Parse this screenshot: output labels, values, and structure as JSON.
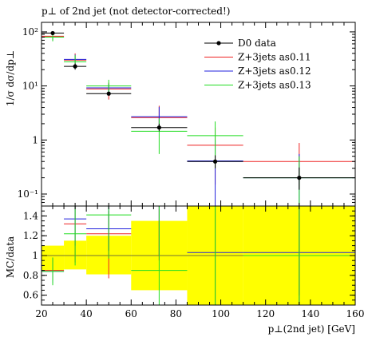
{
  "chart_data": {
    "type": "line",
    "title": "p⊥ of 2nd jet (not detector-corrected!)",
    "xlabel": "p⊥(2nd jet) [GeV]",
    "xlim": [
      20,
      160
    ],
    "x_ticks": [
      "20",
      "40",
      "60",
      "80",
      "100",
      "120",
      "140",
      "160"
    ],
    "x_tick_values": [
      20,
      40,
      60,
      80,
      100,
      120,
      140,
      160
    ],
    "main_panel": {
      "ylabel": "1/σ dσ/dp⊥",
      "yscale": "log",
      "ylim": [
        0.06,
        150
      ],
      "y_major_ticks": [
        {
          "value": 0.1,
          "label": "10⁻¹"
        },
        {
          "value": 1,
          "label": "1"
        },
        {
          "value": 10,
          "label": "10¹"
        },
        {
          "value": 100,
          "label": "10²"
        }
      ],
      "data": {
        "name": "D0 data",
        "color": "#000000",
        "points": [
          {
            "xlo": 20,
            "xhi": 30,
            "x": 25,
            "y": 95,
            "ylo": 92,
            "yhi": 98
          },
          {
            "xlo": 30,
            "xhi": 40,
            "x": 35,
            "y": 23,
            "ylo": 20,
            "yhi": 26
          },
          {
            "xlo": 40,
            "xhi": 60,
            "x": 50,
            "y": 7.2,
            "ylo": 6.7,
            "yhi": 7.8
          },
          {
            "xlo": 60,
            "xhi": 85,
            "x": 72.5,
            "y": 1.7,
            "ylo": 1.45,
            "yhi": 2.0
          },
          {
            "xlo": 85,
            "xhi": 110,
            "x": 97.5,
            "y": 0.4,
            "ylo": 0.3,
            "yhi": 0.52
          },
          {
            "xlo": 110,
            "xhi": 160,
            "x": 135,
            "y": 0.2,
            "ylo": 0.12,
            "yhi": 0.31
          }
        ]
      },
      "series": [
        {
          "name": "Z+3jets as0.11",
          "color": "#ee2222",
          "points": [
            {
              "xlo": 20,
              "xhi": 30,
              "x": 25,
              "y": 83,
              "ylo": 70,
              "yhi": 98
            },
            {
              "xlo": 30,
              "xhi": 40,
              "x": 35,
              "y": 30,
              "ylo": 21,
              "yhi": 40
            },
            {
              "xlo": 40,
              "xhi": 60,
              "x": 50,
              "y": 8.8,
              "ylo": 5.6,
              "yhi": 11.5
            },
            {
              "xlo": 60,
              "xhi": 85,
              "x": 72.5,
              "y": 2.6,
              "ylo": 1.6,
              "yhi": 4.3
            },
            {
              "xlo": 85,
              "xhi": 110,
              "x": 97.5,
              "y": 0.8,
              "ylo": 0.15,
              "yhi": 1.7
            },
            {
              "xlo": 110,
              "xhi": 160,
              "x": 135,
              "y": 0.4,
              "ylo": 0.12,
              "yhi": 0.88
            }
          ]
        },
        {
          "name": "Z+3jets as0.12",
          "color": "#2222dd",
          "points": [
            {
              "xlo": 20,
              "xhi": 30,
              "x": 25,
              "y": 80,
              "ylo": 68,
              "yhi": 95
            },
            {
              "xlo": 30,
              "xhi": 40,
              "x": 35,
              "y": 31,
              "ylo": 25,
              "yhi": 38
            },
            {
              "xlo": 40,
              "xhi": 60,
              "x": 50,
              "y": 9.2,
              "ylo": 7.5,
              "yhi": 11
            },
            {
              "xlo": 60,
              "xhi": 85,
              "x": 72.5,
              "y": 2.7,
              "ylo": 1.7,
              "yhi": 4.1
            },
            {
              "xlo": 85,
              "xhi": 110,
              "x": 97.5,
              "y": 0.41,
              "ylo": 0.05,
              "yhi": 1.0
            },
            {
              "xlo": 110,
              "xhi": 160,
              "x": 135,
              "y": 0.2,
              "ylo": 0.05,
              "yhi": 0.55
            }
          ]
        },
        {
          "name": "Z+3jets as0.13",
          "color": "#22dd22",
          "points": [
            {
              "xlo": 20,
              "xhi": 30,
              "x": 25,
              "y": 80,
              "ylo": 67,
              "yhi": 94
            },
            {
              "xlo": 30,
              "xhi": 40,
              "x": 35,
              "y": 28,
              "ylo": 21,
              "yhi": 37
            },
            {
              "xlo": 40,
              "xhi": 60,
              "x": 50,
              "y": 10,
              "ylo": 7,
              "yhi": 13
            },
            {
              "xlo": 60,
              "xhi": 85,
              "x": 72.5,
              "y": 1.45,
              "ylo": 0.55,
              "yhi": 2.5
            },
            {
              "xlo": 85,
              "xhi": 110,
              "x": 97.5,
              "y": 1.2,
              "ylo": 0.3,
              "yhi": 2.2
            },
            {
              "xlo": 110,
              "xhi": 160,
              "x": 135,
              "y": 0.2,
              "ylo": 0.05,
              "yhi": 0.5
            }
          ]
        }
      ]
    },
    "ratio_panel": {
      "ylabel": "MC/data",
      "ylim": [
        0.5,
        1.5
      ],
      "y_ticks": [
        "0.6",
        "0.8",
        "1",
        "1.2",
        "1.4"
      ],
      "y_tick_values": [
        0.6,
        0.8,
        1.0,
        1.2,
        1.4
      ],
      "band_color": "#ffff00",
      "band": [
        {
          "xlo": 20,
          "xhi": 30,
          "lo": 0.85,
          "hi": 1.1
        },
        {
          "xlo": 30,
          "xhi": 40,
          "lo": 0.86,
          "hi": 1.15
        },
        {
          "xlo": 40,
          "xhi": 60,
          "lo": 0.81,
          "hi": 1.2
        },
        {
          "xlo": 60,
          "xhi": 85,
          "lo": 0.65,
          "hi": 1.35
        },
        {
          "xlo": 85,
          "xhi": 110,
          "lo": 0.5,
          "hi": 1.5
        },
        {
          "xlo": 110,
          "xhi": 160,
          "lo": 0.5,
          "hi": 1.5
        }
      ],
      "reference_line": 1.0,
      "series": [
        {
          "name": "Z+3jets as0.11",
          "color": "#ee2222",
          "points": [
            {
              "x": 25,
              "y": 0.85,
              "ylo": 0.75,
              "yhi": 0.97
            },
            {
              "x": 35,
              "y": 1.32,
              "ylo": 0.93,
              "yhi": 1.5
            },
            {
              "x": 50,
              "y": 1.22,
              "ylo": 0.77,
              "yhi": 1.45
            },
            {
              "x": 72.5,
              "y": 1.5,
              "ylo": 0.95,
              "yhi": 1.5
            },
            {
              "x": 97.5,
              "y": 1.5,
              "ylo": 0.5,
              "yhi": 1.5
            },
            {
              "x": 135,
              "y": 1.5,
              "ylo": 0.6,
              "yhi": 1.5
            }
          ]
        },
        {
          "name": "Z+3jets as0.12",
          "color": "#2222dd",
          "points": [
            {
              "x": 25,
              "y": 0.84,
              "ylo": 0.72,
              "yhi": 0.98
            },
            {
              "x": 35,
              "y": 1.37,
              "ylo": 1.1,
              "yhi": 1.5
            },
            {
              "x": 50,
              "y": 1.27,
              "ylo": 1.05,
              "yhi": 1.5
            },
            {
              "x": 72.5,
              "y": 1.5,
              "ylo": 1.0,
              "yhi": 1.5
            },
            {
              "x": 97.5,
              "y": 1.03,
              "ylo": 0.5,
              "yhi": 1.5
            },
            {
              "x": 135,
              "y": 1.03,
              "ylo": 0.5,
              "yhi": 1.5
            }
          ]
        },
        {
          "name": "Z+3jets as0.13",
          "color": "#22dd22",
          "points": [
            {
              "x": 25,
              "y": 0.84,
              "ylo": 0.7,
              "yhi": 0.98
            },
            {
              "x": 35,
              "y": 1.22,
              "ylo": 0.9,
              "yhi": 1.5
            },
            {
              "x": 50,
              "y": 1.41,
              "ylo": 0.97,
              "yhi": 1.5
            },
            {
              "x": 72.5,
              "y": 0.85,
              "ylo": 0.5,
              "yhi": 1.5
            },
            {
              "x": 97.5,
              "y": 1.5,
              "ylo": 0.5,
              "yhi": 1.5
            },
            {
              "x": 135,
              "y": 1.0,
              "ylo": 0.5,
              "yhi": 1.5
            }
          ]
        }
      ]
    },
    "legend": {
      "placement": "top-right",
      "entries": [
        "D0 data",
        "Z+3jets as0.11",
        "Z+3jets as0.12",
        "Z+3jets as0.13"
      ]
    }
  }
}
